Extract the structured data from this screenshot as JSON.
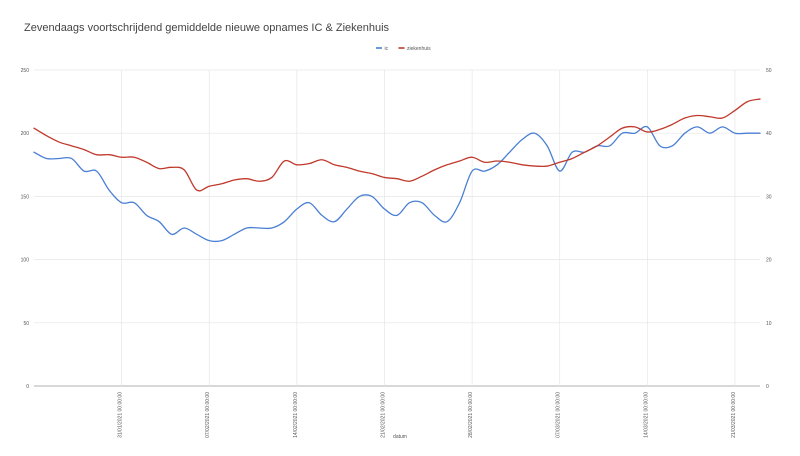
{
  "chart_data": {
    "type": "line",
    "title": "Zevendaags voortschrijdend gemiddelde nieuwe opnames IC & Ziekenhuis",
    "xlabel": "datum",
    "legend_position": "top-center",
    "grid": true,
    "colors": {
      "ic": "#4a7fd4",
      "ziekenhuis": "#c0392b"
    },
    "x_ticks": [
      "31/01/2021 00:00:00",
      "07/02/2021 00:00:00",
      "14/02/2021 00:00:00",
      "21/02/2021 00:00:00",
      "28/02/2021 00:00:00",
      "07/03/2021 00:00:00",
      "14/03/2021 00:00:00",
      "21/03/2021 00:00:00"
    ],
    "x_tick_days": [
      7,
      14,
      21,
      28,
      35,
      42,
      49,
      56
    ],
    "x_range": [
      0,
      58
    ],
    "y_left": {
      "ticks": [
        0,
        50,
        100,
        150,
        200,
        250
      ],
      "range": [
        0,
        250
      ]
    },
    "y_right": {
      "ticks": [
        0,
        10,
        20,
        30,
        40,
        50
      ],
      "range": [
        0,
        50
      ]
    },
    "series": [
      {
        "name": "ic",
        "axis": "right",
        "x": [
          0,
          1,
          2,
          3,
          4,
          5,
          6,
          7,
          8,
          9,
          10,
          11,
          12,
          13,
          14,
          15,
          16,
          17,
          18,
          19,
          20,
          21,
          22,
          23,
          24,
          25,
          26,
          27,
          28,
          29,
          30,
          31,
          32,
          33,
          34,
          35,
          36,
          37,
          38,
          39,
          40,
          41,
          42,
          43,
          44,
          45,
          46,
          47,
          48,
          49,
          50,
          51,
          52,
          53,
          54,
          55,
          56,
          57,
          58
        ],
        "values": [
          37,
          36,
          36,
          36,
          34,
          34,
          31,
          29,
          29,
          27,
          26,
          24,
          25,
          24,
          23,
          23,
          24,
          25,
          25,
          25,
          26,
          28,
          29,
          27,
          26,
          28,
          30,
          30,
          28,
          27,
          29,
          29,
          27,
          26,
          29,
          34,
          34,
          35,
          37,
          39,
          40,
          38,
          34,
          37,
          37,
          38,
          38,
          40,
          40,
          41,
          38,
          38,
          40,
          41,
          40,
          41,
          40,
          40,
          40
        ]
      },
      {
        "name": "ziekenhuis",
        "axis": "left",
        "x": [
          0,
          1,
          2,
          3,
          4,
          5,
          6,
          7,
          8,
          9,
          10,
          11,
          12,
          13,
          14,
          15,
          16,
          17,
          18,
          19,
          20,
          21,
          22,
          23,
          24,
          25,
          26,
          27,
          28,
          29,
          30,
          31,
          32,
          33,
          34,
          35,
          36,
          37,
          38,
          39,
          40,
          41,
          42,
          43,
          44,
          45,
          46,
          47,
          48,
          49,
          50,
          51,
          52,
          53,
          54,
          55,
          56,
          57,
          58
        ],
        "values": [
          204,
          198,
          193,
          190,
          187,
          183,
          183,
          181,
          181,
          177,
          172,
          173,
          171,
          155,
          158,
          160,
          163,
          164,
          162,
          165,
          178,
          175,
          176,
          179,
          175,
          173,
          170,
          168,
          165,
          164,
          162,
          166,
          171,
          175,
          178,
          181,
          177,
          178,
          177,
          175,
          174,
          174,
          177,
          180,
          185,
          190,
          197,
          204,
          205,
          201,
          203,
          207,
          212,
          214,
          213,
          212,
          218,
          225,
          227
        ]
      }
    ]
  }
}
